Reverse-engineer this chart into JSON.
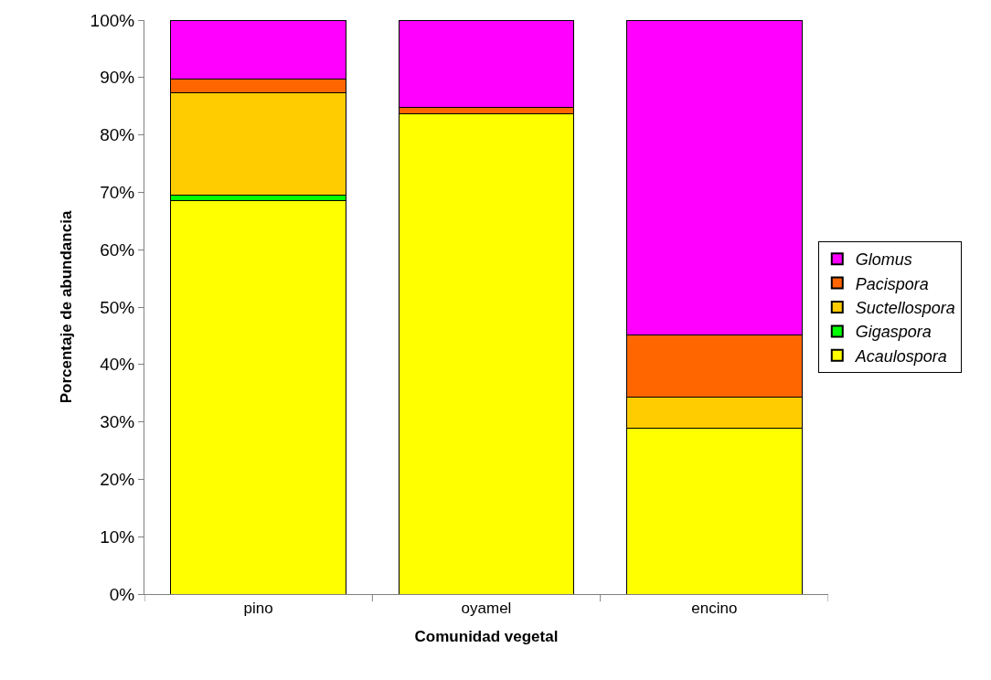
{
  "chart_data": {
    "type": "bar",
    "stacked": true,
    "xlabel": "Comunidad vegetal",
    "ylabel": "Porcentaje de abundancia",
    "categories": [
      "pino",
      "oyamel",
      "encino"
    ],
    "series": [
      {
        "name": "Acaulospora",
        "color": "#ffff00",
        "values": [
          68.6,
          83.7,
          28.9
        ]
      },
      {
        "name": "Gigaspora",
        "color": "#00ff00",
        "values": [
          0.9,
          0,
          0
        ]
      },
      {
        "name": "Suctellospora",
        "color": "#ffcc00",
        "values": [
          17.8,
          0,
          5.4
        ]
      },
      {
        "name": "Pacispora",
        "color": "#ff6600",
        "values": [
          2.4,
          1.1,
          10.8
        ]
      },
      {
        "name": "Glomus",
        "color": "#ff00ff",
        "values": [
          10.3,
          15.2,
          54.9
        ]
      }
    ],
    "ylim": [
      0,
      100
    ],
    "yticks": [
      {
        "value": 0,
        "label": "0%"
      },
      {
        "value": 10,
        "label": "10%"
      },
      {
        "value": 20,
        "label": "20%"
      },
      {
        "value": 30,
        "label": "30%"
      },
      {
        "value": 40,
        "label": "40%"
      },
      {
        "value": 50,
        "label": "50%"
      },
      {
        "value": 60,
        "label": "60%"
      },
      {
        "value": 70,
        "label": "70%"
      },
      {
        "value": 80,
        "label": "80%"
      },
      {
        "value": 90,
        "label": "90%"
      },
      {
        "value": 100,
        "label": "100%"
      }
    ],
    "legend": "right"
  }
}
